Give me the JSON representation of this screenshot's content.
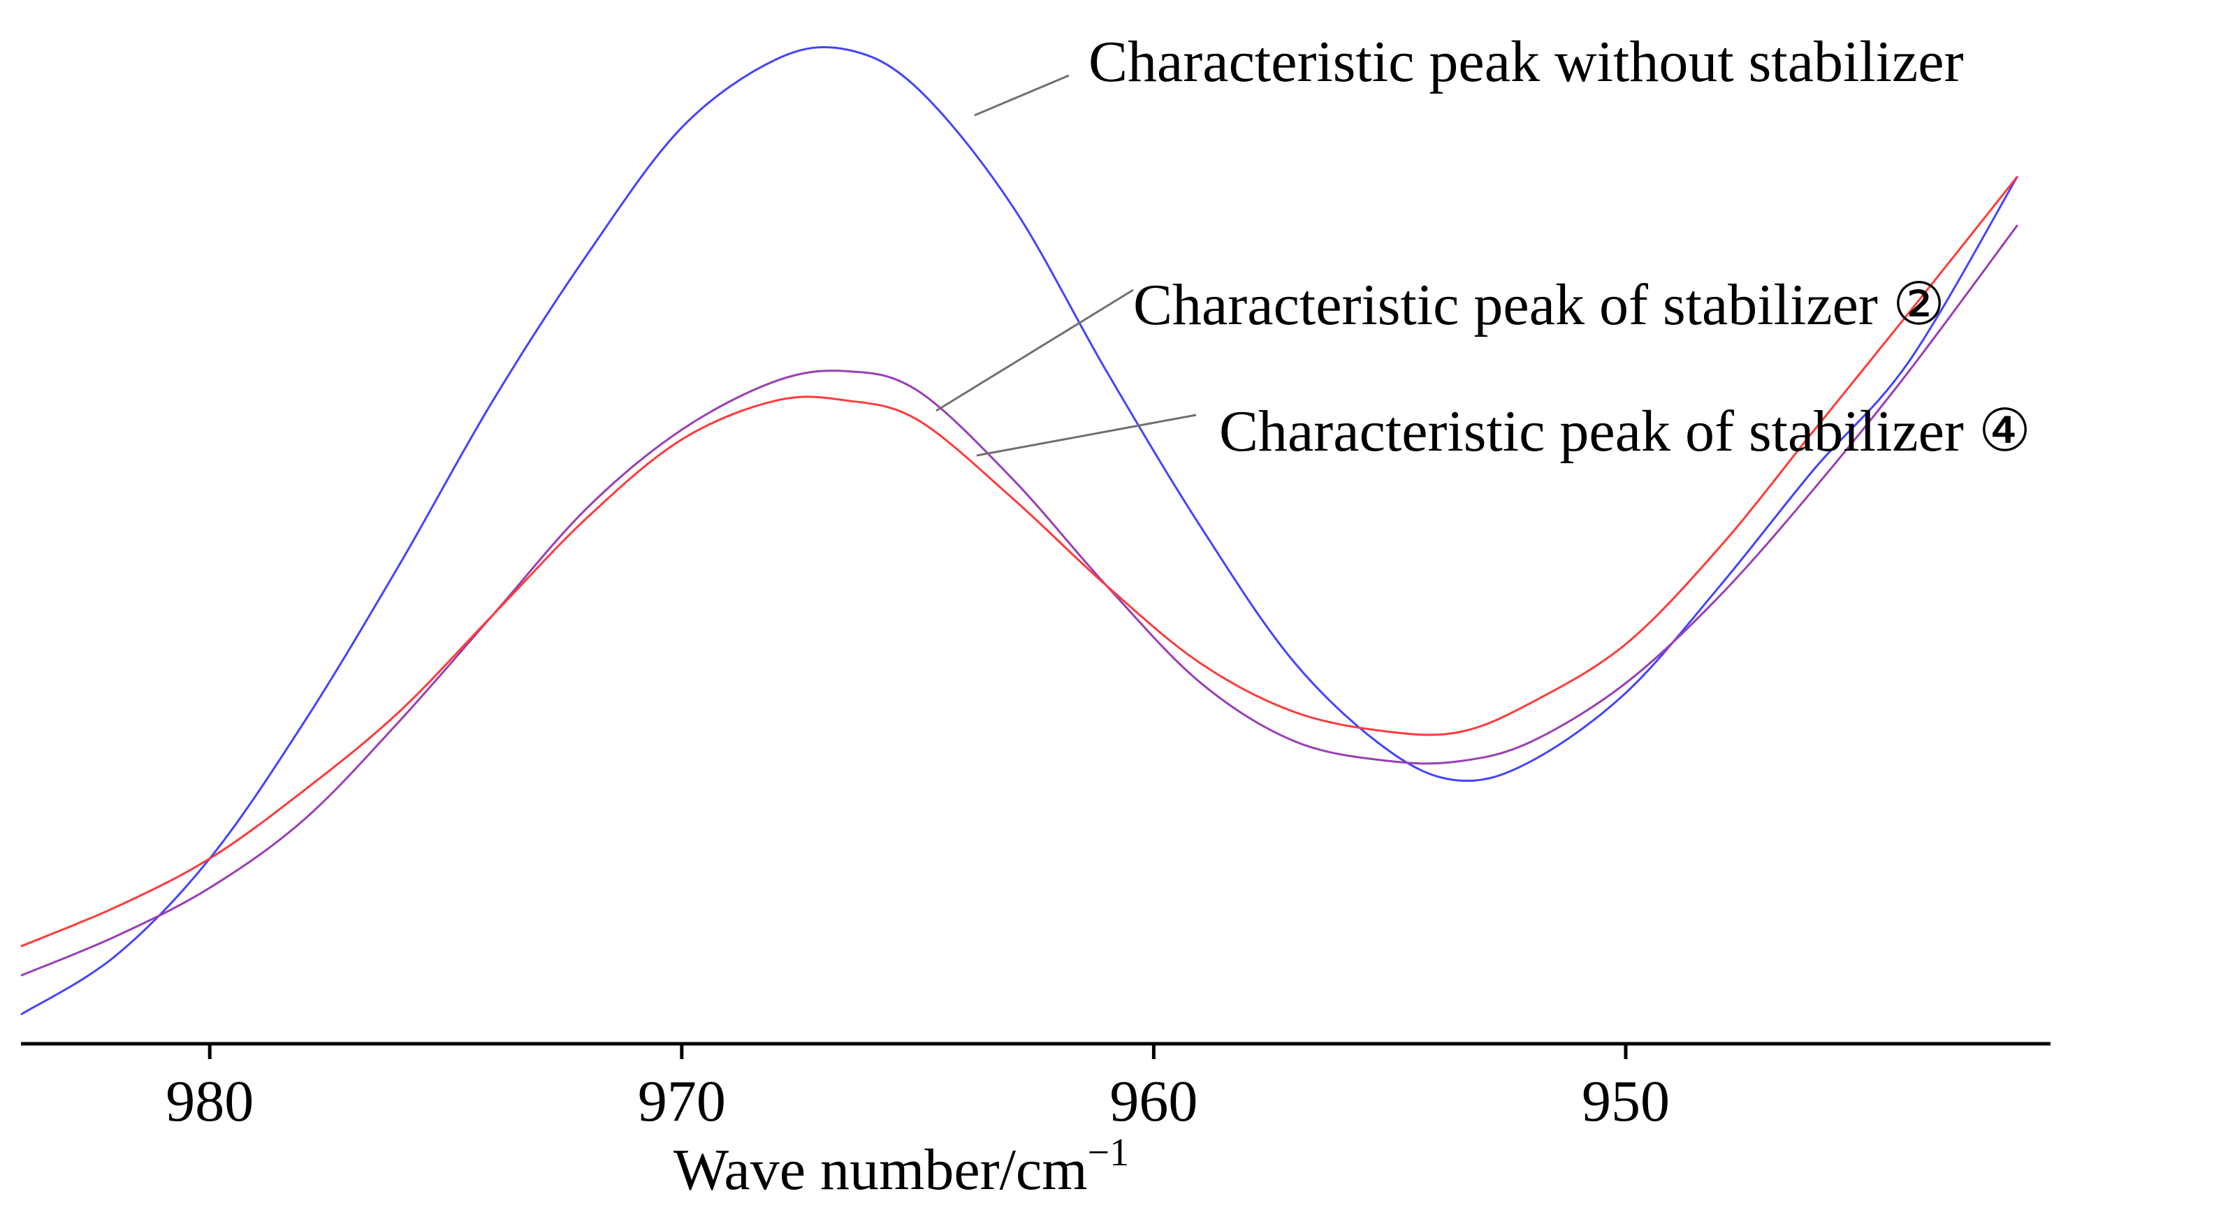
{
  "chart_data": {
    "type": "line",
    "title": "",
    "xlabel": "Wave number/cm",
    "xlabel_sup": "−1",
    "ylabel": "",
    "x_reversed": true,
    "xlim": [
      984,
      941
    ],
    "ylim": [
      0,
      1
    ],
    "ticks": [
      980,
      970,
      960,
      950
    ],
    "tick_labels": [
      "980",
      "970",
      "960",
      "950"
    ],
    "grid": false,
    "series": [
      {
        "name": "Characteristic peak without stabilizer",
        "color": "#4444ff",
        "x": [
          984,
          982,
          980,
          978,
          976,
          974,
          972,
          970,
          968,
          966.5,
          965,
          963,
          961,
          959,
          957,
          955,
          953.5,
          952,
          950,
          948,
          946,
          944,
          941.7
        ],
        "y": [
          0.02,
          0.08,
          0.18,
          0.32,
          0.48,
          0.65,
          0.8,
          0.93,
          1.0,
          1.01,
          0.97,
          0.85,
          0.68,
          0.52,
          0.38,
          0.29,
          0.26,
          0.28,
          0.35,
          0.46,
          0.58,
          0.69,
          0.88
        ]
      },
      {
        "name": "Characteristic peak of stabilizer ②",
        "color": "#9a3fb5",
        "x": [
          984,
          982,
          980,
          978,
          976,
          974,
          972,
          970,
          968,
          966.5,
          965,
          963,
          961,
          959,
          957,
          955,
          953.5,
          952,
          950,
          948,
          946,
          944,
          941.7
        ],
        "y": [
          0.06,
          0.1,
          0.15,
          0.22,
          0.32,
          0.43,
          0.54,
          0.62,
          0.67,
          0.68,
          0.66,
          0.57,
          0.46,
          0.36,
          0.3,
          0.28,
          0.28,
          0.3,
          0.36,
          0.45,
          0.56,
          0.68,
          0.83
        ]
      },
      {
        "name": "Characteristic peak of stabilizer ④",
        "color": "#ff3b3b",
        "x": [
          984,
          982,
          980,
          978,
          976,
          974,
          972,
          970,
          968,
          966.5,
          965,
          963,
          961,
          959,
          957,
          955,
          953.5,
          952,
          950,
          948,
          946,
          944,
          941.7
        ],
        "y": [
          0.09,
          0.13,
          0.18,
          0.25,
          0.33,
          0.43,
          0.53,
          0.61,
          0.65,
          0.65,
          0.63,
          0.55,
          0.46,
          0.38,
          0.33,
          0.31,
          0.31,
          0.34,
          0.4,
          0.5,
          0.62,
          0.74,
          0.88
        ]
      }
    ],
    "annotations": [
      {
        "text": "Characteristic peak without stabilizer",
        "series": 0
      },
      {
        "text": "Characteristic peak of stabilizer ②",
        "series": 1
      },
      {
        "text": "Characteristic peak of stabilizer ④",
        "series": 2
      }
    ]
  }
}
